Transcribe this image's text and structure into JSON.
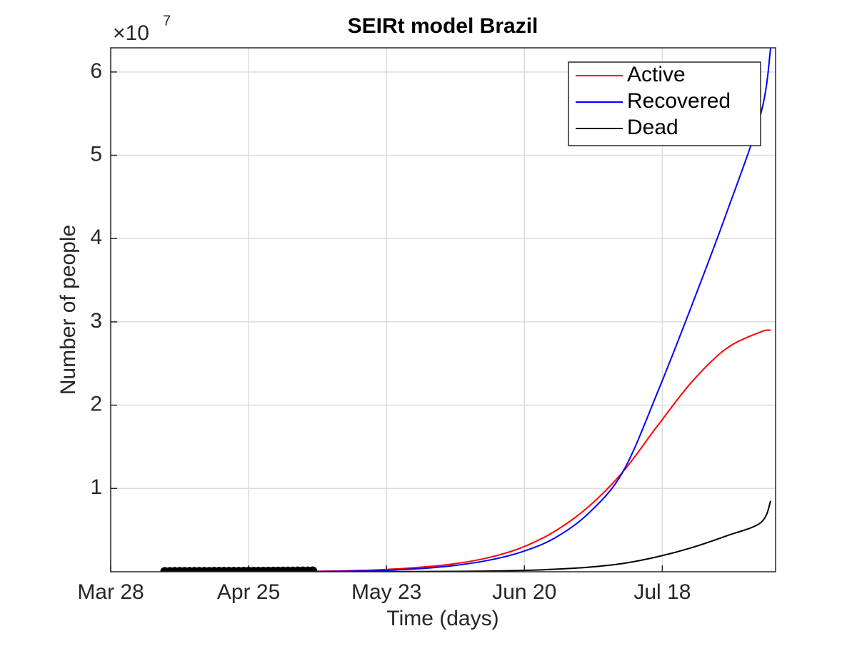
{
  "chart_data": {
    "type": "line",
    "title": "SEIRt model Brazil",
    "x_label": "Time (days)",
    "y_label": "Number of people",
    "y_multiplier": {
      "base": "×10",
      "exponent": "7"
    },
    "xlim": [
      "Mar 28",
      "Aug 10"
    ],
    "xticks": [
      "Mar 28",
      "Apr 25",
      "May 23",
      "Jun 20",
      "Jul 18"
    ],
    "ylim": [
      0,
      62900000
    ],
    "yticks": [
      {
        "value": 10000000,
        "label": "1"
      },
      {
        "value": 20000000,
        "label": "2"
      },
      {
        "value": 30000000,
        "label": "3"
      },
      {
        "value": 40000000,
        "label": "4"
      },
      {
        "value": 50000000,
        "label": "5"
      },
      {
        "value": 60000000,
        "label": "6"
      }
    ],
    "grid": true,
    "legend": "upper right",
    "x": [
      "May 8",
      "May 15",
      "May 22",
      "May 29",
      "Jun 5",
      "Jun 12",
      "Jun 19",
      "Jun 26",
      "Jul 3",
      "Jul 10",
      "Jul 17",
      "Jul 24",
      "Jul 31",
      "Aug 7",
      "Aug 9"
    ],
    "series": [
      {
        "name": "Active",
        "color": "#ff0000",
        "values": [
          50000,
          120000,
          250000,
          500000,
          900000,
          1600000,
          2800000,
          4800000,
          7800000,
          12000000,
          17500000,
          22800000,
          26800000,
          28800000,
          29000000
        ]
      },
      {
        "name": "Recovered",
        "color": "#0000ff",
        "values": [
          20000,
          60000,
          150000,
          350000,
          700000,
          1300000,
          2300000,
          4000000,
          7000000,
          12000000,
          21500000,
          32000000,
          43000000,
          55000000,
          62900000
        ]
      },
      {
        "name": "Dead",
        "color": "#000000",
        "values": [
          0,
          5000,
          10000,
          20000,
          40000,
          80000,
          150000,
          300000,
          550000,
          1000000,
          1800000,
          2900000,
          4300000,
          5900000,
          8500000
        ]
      }
    ],
    "observed": {
      "color": "#000000",
      "x": [
        "Apr 8",
        "Apr 9",
        "Apr 10",
        "Apr 11",
        "Apr 12",
        "Apr 13",
        "Apr 14",
        "Apr 15",
        "Apr 16",
        "Apr 17",
        "Apr 18",
        "Apr 19",
        "Apr 20",
        "Apr 21",
        "Apr 22",
        "Apr 23",
        "Apr 24",
        "Apr 25",
        "Apr 26",
        "Apr 27",
        "Apr 28",
        "Apr 29",
        "Apr 30",
        "May 1",
        "May 2",
        "May 3",
        "May 4",
        "May 5",
        "May 6",
        "May 7",
        "May 8"
      ],
      "values": [
        15000,
        16000,
        17000,
        18000,
        19000,
        20000,
        21000,
        22000,
        23000,
        25000,
        27000,
        29000,
        31000,
        33000,
        35000,
        37000,
        39000,
        41000,
        43000,
        45000,
        48000,
        51000,
        54000,
        57000,
        60000,
        64000,
        68000,
        72000,
        76000,
        80000,
        85000
      ]
    }
  }
}
